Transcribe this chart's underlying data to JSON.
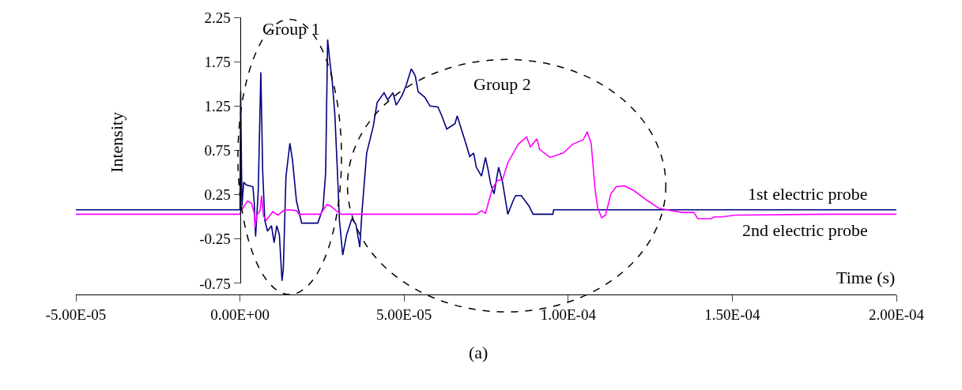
{
  "chart_data": {
    "type": "line",
    "xlabel": "Time (s)",
    "ylabel": "Intensity",
    "annotations": [
      "Group 1",
      "Group 2",
      "(a)"
    ],
    "xlim": [
      -5e-05,
      0.0002
    ],
    "ylim": [
      -0.75,
      2.25
    ],
    "xticks": [
      {
        "value": -5e-05,
        "label": "-5.00E-05"
      },
      {
        "value": 0,
        "label": "0.00E+00"
      },
      {
        "value": 5e-05,
        "label": "5.00E-05"
      },
      {
        "value": 0.0001,
        "label": "1.00E-04"
      },
      {
        "value": 0.00015,
        "label": "1.50E-04"
      },
      {
        "value": 0.0002,
        "label": "2.00E-04"
      }
    ],
    "yticks": [
      2.25,
      1.75,
      1.25,
      0.75,
      0.25,
      -0.25,
      -0.75
    ],
    "marker": "none",
    "line_style": "solid",
    "series": [
      {
        "name": "1st electric probe",
        "color": "#000080",
        "x": [
          -5e-05,
          0,
          2e-07,
          6e-07,
          1.13e-06,
          1.93e-06,
          3.94e-06,
          4.35e-06,
          4.76e-06,
          5.56e-06,
          6.35e-06,
          6.93e-06,
          7.56e-06,
          8.38e-06,
          9.59e-06,
          1.04e-05,
          1.12e-05,
          1.2e-05,
          1.28e-05,
          1.32e-05,
          1.4e-05,
          1.52e-05,
          1.6e-05,
          1.72e-05,
          1.88e-05,
          2.37e-05,
          2.53e-05,
          2.61e-05,
          2.67e-05,
          2.73e-05,
          2.81e-05,
          2.89e-05,
          2.97e-05,
          3.03e-05,
          3.13e-05,
          3.25e-05,
          3.41e-05,
          3.53e-05,
          3.65e-05,
          3.72e-05,
          3.86e-05,
          4.06e-05,
          4.18e-05,
          4.39e-05,
          4.5e-05,
          4.66e-05,
          4.76e-05,
          4.94e-05,
          5.06e-05,
          5.22e-05,
          5.34e-05,
          5.43e-05,
          5.63e-05,
          5.79e-05,
          6.03e-05,
          6.15e-05,
          6.3e-05,
          6.55e-05,
          6.62e-05,
          6.71e-05,
          6.88e-05,
          7e-05,
          7.12e-05,
          7.2e-05,
          7.36e-05,
          7.48e-05,
          7.56e-05,
          7.64e-05,
          7.74e-05,
          7.88e-05,
          8e-05,
          8.12e-05,
          8.16e-05,
          8.32e-05,
          8.4e-05,
          8.57e-05,
          8.81e-05,
          8.93e-05,
          9.53e-05,
          9.56e-05,
          0.0002
        ],
        "values": [
          0.08,
          0.08,
          1.41,
          0.12,
          0.39,
          0.36,
          0.34,
          0.15,
          -0.22,
          0.29,
          1.63,
          0.5,
          -0.04,
          -0.16,
          -0.1,
          -0.29,
          -0.1,
          -0.2,
          -0.72,
          -0.59,
          0.45,
          0.83,
          0.64,
          0.18,
          -0.07,
          -0.07,
          0.1,
          0.5,
          2.0,
          1.78,
          1.53,
          1.16,
          0.5,
          -0.04,
          -0.43,
          -0.2,
          -0.02,
          -0.08,
          -0.34,
          0.07,
          0.72,
          1.02,
          1.29,
          1.4,
          1.32,
          1.4,
          1.26,
          1.37,
          1.48,
          1.67,
          1.59,
          1.41,
          1.35,
          1.25,
          1.24,
          1.14,
          0.99,
          1.05,
          1.14,
          1.03,
          0.83,
          0.68,
          0.72,
          0.56,
          0.46,
          0.67,
          0.53,
          0.37,
          0.26,
          0.56,
          0.39,
          0.12,
          0.03,
          0.18,
          0.24,
          0.24,
          0.12,
          0.03,
          0.03,
          0.08,
          0.08
        ]
      },
      {
        "name": "2nd electric probe",
        "color": "#ff00ff",
        "x": [
          -5e-05,
          0,
          3.1e-07,
          2.34e-06,
          3.55e-06,
          4.35e-06,
          4.59e-06,
          5.14e-06,
          6.11e-06,
          6.59e-06,
          7.17e-06,
          7.97e-06,
          9.97e-06,
          1.16e-05,
          1.32e-05,
          1.48e-05,
          1.72e-05,
          1.8e-05,
          2.45e-05,
          2.65e-05,
          2.77e-05,
          2.93e-05,
          3.09e-05,
          7.2e-05,
          7.36e-05,
          7.48e-05,
          7.68e-05,
          7.84e-05,
          8e-05,
          8.16e-05,
          8.48e-05,
          8.73e-05,
          8.85e-05,
          9.05e-05,
          9.13e-05,
          9.45e-05,
          9.85e-05,
          0.0001014,
          0.0001046,
          0.0001058,
          0.000107,
          0.0001082,
          0.000109,
          0.0001102,
          0.0001114,
          0.000113,
          0.0001146,
          0.0001171,
          0.0001199,
          0.0001235,
          0.0001275,
          0.0001299,
          0.0001347,
          0.0001383,
          0.0001395,
          0.0001436,
          0.0001444,
          0.0001468,
          0.0001509,
          0.0001798,
          0.0002
        ],
        "values": [
          0.03,
          0.03,
          0.07,
          0.18,
          0.15,
          0.04,
          -0.12,
          0.02,
          0.07,
          0.24,
          0.01,
          -0.04,
          0.06,
          0.02,
          0.07,
          0.08,
          0.07,
          0.03,
          0.03,
          0.14,
          0.12,
          0.07,
          0.03,
          0.03,
          0.07,
          0.04,
          0.31,
          0.41,
          0.42,
          0.61,
          0.82,
          0.9,
          0.79,
          0.88,
          0.76,
          0.67,
          0.72,
          0.82,
          0.87,
          0.96,
          0.83,
          0.31,
          0.1,
          -0.01,
          0.02,
          0.26,
          0.34,
          0.35,
          0.3,
          0.2,
          0.1,
          0.08,
          0.05,
          0.05,
          -0.02,
          -0.02,
          0.0,
          0.0,
          0.02,
          0.03,
          0.03
        ]
      }
    ]
  }
}
